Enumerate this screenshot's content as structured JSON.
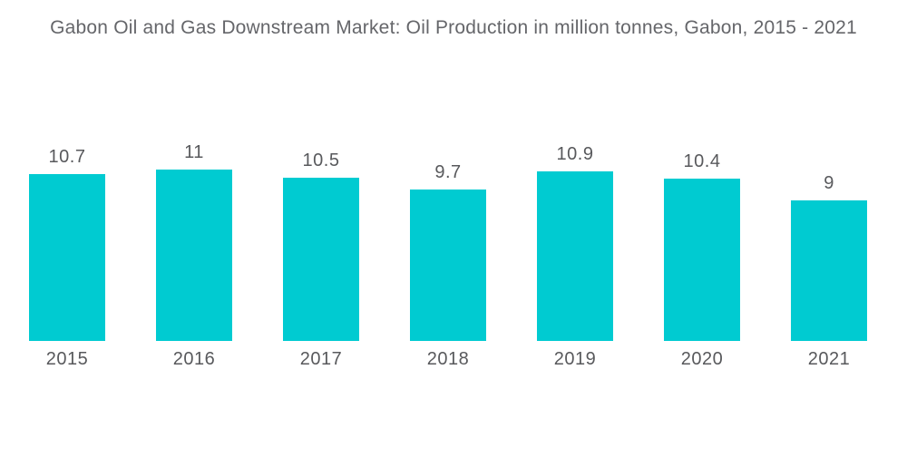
{
  "title": "Gabon Oil and Gas Downstream Market: Oil Production in million tonnes, Gabon, 2015 - 2021",
  "chart_data": {
    "type": "bar",
    "title": "Gabon Oil and Gas Downstream Market: Oil Production in million tonnes, Gabon, 2015 - 2021",
    "categories": [
      "2015",
      "2016",
      "2017",
      "2018",
      "2019",
      "2020",
      "2021"
    ],
    "values": [
      10.7,
      11,
      10.5,
      9.7,
      10.9,
      10.4,
      9
    ],
    "value_labels": [
      "10.7",
      "11",
      "10.5",
      "9.7",
      "10.9",
      "10.4",
      "9"
    ],
    "xlabel": "",
    "ylabel": "",
    "ylim": [
      0,
      11
    ],
    "grid": false,
    "legend": false,
    "axis_lines": false,
    "bar_color": "#00cbd1",
    "label_color": "#58595c",
    "title_color": "#65666a",
    "background_color": "#ffffff"
  }
}
